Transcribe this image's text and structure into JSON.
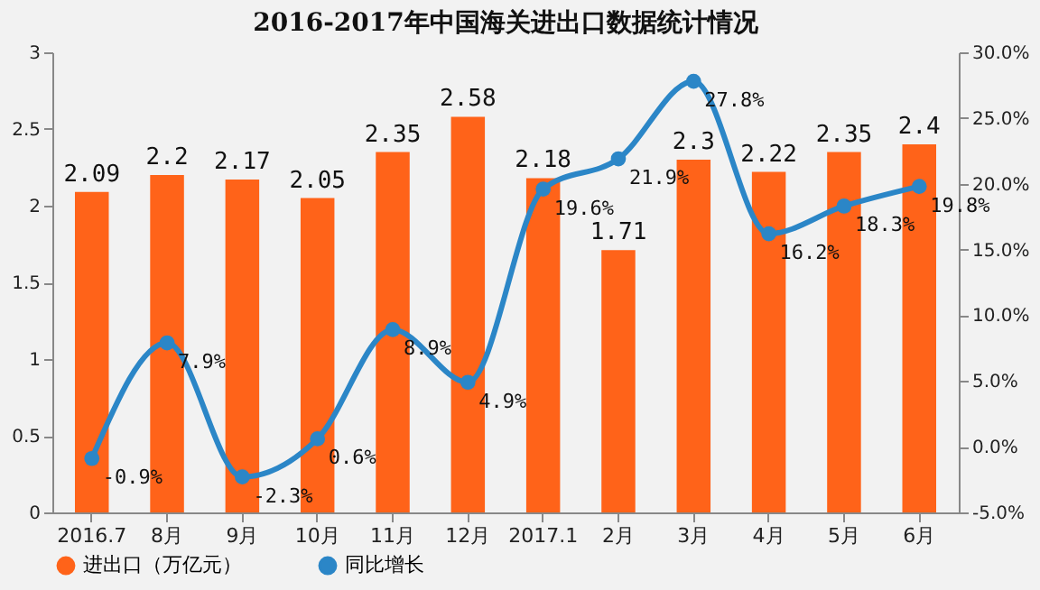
{
  "chart_data": {
    "type": "bar",
    "title": "2016-2017年中国海关进出口数据统计情况",
    "categories": [
      "2016.7",
      "8月",
      "9月",
      "10月",
      "11月",
      "12月",
      "2017.1",
      "2月",
      "3月",
      "4月",
      "5月",
      "6月"
    ],
    "series": [
      {
        "name": "进出口（万亿元）",
        "color": "#ff6319",
        "values": [
          2.09,
          2.2,
          2.17,
          2.05,
          2.35,
          2.58,
          2.18,
          1.71,
          2.3,
          2.22,
          2.35,
          2.4
        ],
        "value_labels": [
          "2.09",
          "2.2",
          "2.17",
          "2.05",
          "2.35",
          "2.58",
          "2.18",
          "1.71",
          "2.3",
          "2.22",
          "2.35",
          "2.4"
        ]
      },
      {
        "name": "同比增长",
        "type": "line",
        "axis": "y2",
        "color": "#2b86c7",
        "values": [
          -0.9,
          7.9,
          -2.3,
          0.6,
          8.9,
          4.9,
          19.6,
          21.9,
          27.8,
          16.2,
          18.3,
          19.8
        ],
        "value_labels": [
          "-0.9%",
          "7.9%",
          "-2.3%",
          "0.6%",
          "8.9%",
          "4.9%",
          "19.6%",
          "21.9%",
          "27.8%",
          "16.2%",
          "18.3%",
          "19.8%"
        ]
      }
    ],
    "ylim": [
      0,
      3
    ],
    "yticks": [
      0,
      0.5,
      1,
      1.5,
      2,
      2.5,
      3
    ],
    "y2lim": [
      -5,
      30
    ],
    "y2ticks": [
      {
        "value": -5,
        "label": "-5.0%"
      },
      {
        "value": 0,
        "label": "0.0%"
      },
      {
        "value": 5,
        "label": "5.0%"
      },
      {
        "value": 10,
        "label": "10.0%"
      },
      {
        "value": 15,
        "label": "15.0%"
      },
      {
        "value": 20,
        "label": "20.0%"
      },
      {
        "value": 25,
        "label": "25.0%"
      },
      {
        "value": 30,
        "label": "30.0%"
      }
    ],
    "legend": "bottom",
    "marker": "circle",
    "grid": false
  }
}
